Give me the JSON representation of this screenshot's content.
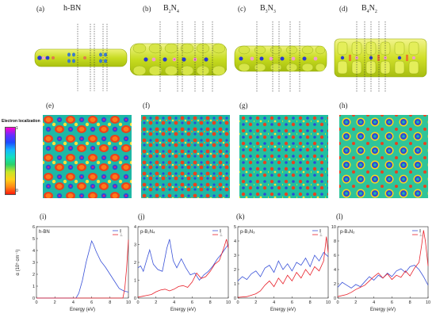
{
  "top_panels": [
    {
      "letter": "(a)",
      "title": "h-BN"
    },
    {
      "letter": "(b)",
      "title": "B2N4",
      "base": "B",
      "s1": "2",
      "mid": "N",
      "s2": "4"
    },
    {
      "letter": "(c)",
      "title": "B3N3",
      "base": "B",
      "s1": "3",
      "mid": "N",
      "s2": "3"
    },
    {
      "letter": "(d)",
      "title": "B4N2",
      "base": "B",
      "s1": "4",
      "mid": "N",
      "s2": "2"
    }
  ],
  "elf_panels": [
    {
      "letter": "(e)"
    },
    {
      "letter": "(f)"
    },
    {
      "letter": "(g)"
    },
    {
      "letter": "(h)"
    }
  ],
  "colorbar": {
    "title": "Electron localization",
    "max": "1",
    "min": "0"
  },
  "plot_panels": [
    {
      "letter": "(i)",
      "title": "h-BN",
      "ylabel": "α (10⁵ cm⁻¹)",
      "xlabel": "Energy (eV)"
    },
    {
      "letter": "(j)",
      "title": "p-B₂N₄",
      "xlabel": "Energy (eV)"
    },
    {
      "letter": "(k)",
      "title": "p-B₃N₃",
      "xlabel": "Energy (eV)"
    },
    {
      "letter": "(l)",
      "title": "p-B₄N₂",
      "xlabel": "Energy (eV)"
    }
  ],
  "legend": {
    "par": "∥",
    "perp": "⊥"
  },
  "colors": {
    "par": "#3a52d8",
    "perp": "#e8202a",
    "elf_bg": "#1bbfa2",
    "iso": "#cfe22a"
  },
  "chart_data": [
    {
      "type": "line",
      "title": "h-BN",
      "xlabel": "Energy (eV)",
      "ylabel": "α (10⁵ cm⁻¹)",
      "xlim": [
        0,
        10
      ],
      "ylim": [
        0,
        6
      ],
      "xticks": [
        "0",
        "2",
        "4",
        "6",
        "8",
        "10"
      ],
      "yticks": [
        "0",
        "1",
        "2",
        "3",
        "4",
        "5",
        "6"
      ],
      "series": [
        {
          "name": "∥",
          "x": [
            0,
            4.3,
            4.6,
            5.0,
            5.4,
            5.8,
            6.0,
            6.2,
            6.5,
            7.0,
            7.5,
            8.0,
            8.5,
            9.0,
            9.5,
            10
          ],
          "y": [
            0,
            0,
            0.4,
            1.5,
            3.0,
            4.2,
            4.8,
            4.5,
            3.9,
            3.1,
            2.6,
            2.0,
            1.4,
            0.8,
            0.6,
            0.5
          ]
        },
        {
          "name": "⊥",
          "x": [
            0,
            9.4,
            9.6,
            9.8,
            10
          ],
          "y": [
            0,
            0,
            0.8,
            2.5,
            4.9
          ]
        }
      ]
    },
    {
      "type": "line",
      "title": "p-B₂N₄",
      "xlabel": "Energy (eV)",
      "xlim": [
        0,
        10
      ],
      "ylim": [
        0,
        4
      ],
      "xticks": [
        "0",
        "2",
        "4",
        "6",
        "8",
        "10"
      ],
      "yticks": [
        "0",
        "1",
        "2",
        "3",
        "4"
      ],
      "series": [
        {
          "name": "∥",
          "x": [
            0,
            0.3,
            0.6,
            1.0,
            1.3,
            1.7,
            2.2,
            2.7,
            3.2,
            3.5,
            3.9,
            4.3,
            4.8,
            5.3,
            5.8,
            6.3,
            6.8,
            7.3,
            7.8,
            8.3,
            8.8,
            9.3,
            9.7,
            10
          ],
          "y": [
            1.7,
            1.8,
            1.5,
            2.2,
            2.7,
            1.9,
            1.6,
            1.5,
            2.8,
            3.3,
            2.1,
            1.7,
            2.2,
            1.7,
            1.3,
            1.4,
            1.0,
            1.3,
            1.5,
            1.8,
            2.2,
            2.5,
            2.8,
            3.0
          ]
        },
        {
          "name": "⊥",
          "x": [
            0,
            0.5,
            1.0,
            1.5,
            2.0,
            2.5,
            3.0,
            3.5,
            4.0,
            4.5,
            5.0,
            5.5,
            6.0,
            6.5,
            7.0,
            7.5,
            8.0,
            8.5,
            9.0,
            9.5,
            9.8,
            10
          ],
          "y": [
            0.05,
            0.1,
            0.15,
            0.2,
            0.35,
            0.45,
            0.5,
            0.4,
            0.5,
            0.65,
            0.7,
            0.6,
            0.9,
            1.4,
            1.1,
            1.2,
            1.5,
            1.9,
            2.1,
            2.8,
            3.3,
            2.8
          ]
        }
      ]
    },
    {
      "type": "line",
      "title": "p-B₃N₃",
      "xlabel": "Energy (eV)",
      "xlim": [
        0,
        10
      ],
      "ylim": [
        0,
        5
      ],
      "xticks": [
        "0",
        "2",
        "4",
        "6",
        "8",
        "10"
      ],
      "yticks": [
        "0",
        "1",
        "2",
        "3",
        "4",
        "5"
      ],
      "series": [
        {
          "name": "∥",
          "x": [
            0,
            0.5,
            1.0,
            1.5,
            2.0,
            2.5,
            3.0,
            3.5,
            4.0,
            4.5,
            5.0,
            5.5,
            6.0,
            6.5,
            7.0,
            7.5,
            8.0,
            8.5,
            9.0,
            9.5,
            10
          ],
          "y": [
            1.2,
            1.5,
            1.3,
            1.7,
            1.9,
            1.5,
            2.1,
            2.3,
            1.8,
            2.6,
            2.0,
            2.4,
            1.9,
            2.5,
            2.3,
            2.8,
            2.2,
            3.0,
            2.6,
            3.2,
            2.9
          ]
        },
        {
          "name": "⊥",
          "x": [
            0,
            1.0,
            2.0,
            2.5,
            3.0,
            3.5,
            4.0,
            4.5,
            5.0,
            5.5,
            6.0,
            6.5,
            7.0,
            7.5,
            8.0,
            8.5,
            9.0,
            9.5,
            9.8,
            10
          ],
          "y": [
            0.05,
            0.1,
            0.3,
            0.5,
            0.9,
            1.2,
            0.8,
            1.4,
            1.0,
            1.6,
            1.2,
            1.8,
            1.4,
            2.0,
            1.6,
            2.2,
            1.9,
            2.6,
            4.3,
            3.2
          ]
        }
      ]
    },
    {
      "type": "line",
      "title": "p-B₄N₂",
      "xlabel": "Energy (eV)",
      "xlim": [
        0,
        10
      ],
      "ylim": [
        0,
        10
      ],
      "xticks": [
        "0",
        "2",
        "4",
        "6",
        "8",
        "10"
      ],
      "yticks": [
        "0",
        "2",
        "4",
        "6",
        "8",
        "10"
      ],
      "series": [
        {
          "name": "∥",
          "x": [
            0,
            0.5,
            1.0,
            1.5,
            2.0,
            2.5,
            3.0,
            3.5,
            4.0,
            4.5,
            5.0,
            5.5,
            6.0,
            6.5,
            7.0,
            7.5,
            8.0,
            8.5,
            9.0,
            9.5,
            10
          ],
          "y": [
            1.5,
            2.2,
            1.8,
            1.4,
            1.9,
            1.6,
            2.3,
            3.0,
            2.5,
            3.2,
            2.8,
            3.5,
            3.0,
            3.8,
            4.1,
            3.6,
            4.4,
            4.6,
            4.0,
            3.0,
            1.8
          ]
        },
        {
          "name": "⊥",
          "x": [
            0,
            1.0,
            1.5,
            2.0,
            2.5,
            3.0,
            3.5,
            4.0,
            4.5,
            5.0,
            5.5,
            6.0,
            6.5,
            7.0,
            7.5,
            8.0,
            8.5,
            9.0,
            9.3,
            9.5,
            9.7,
            10
          ],
          "y": [
            0.2,
            0.5,
            0.8,
            1.2,
            1.5,
            1.8,
            2.4,
            3.0,
            3.5,
            2.8,
            3.4,
            2.6,
            3.2,
            2.9,
            3.8,
            3.1,
            4.2,
            5.0,
            7.5,
            9.5,
            8.0,
            4.5
          ]
        }
      ]
    }
  ]
}
